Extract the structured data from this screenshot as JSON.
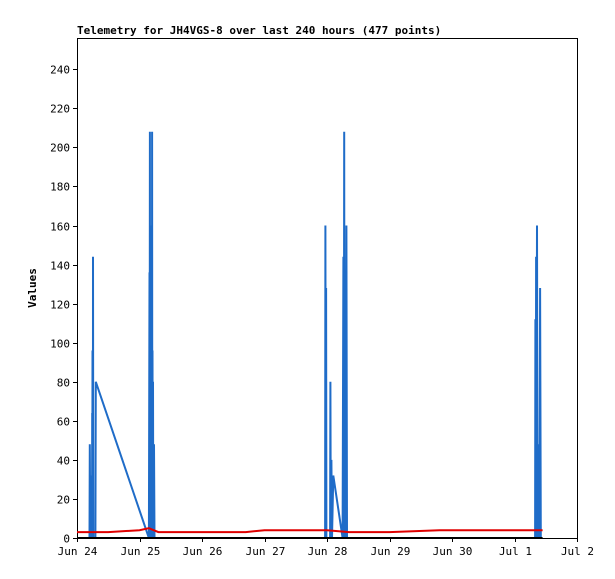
{
  "chart_data": {
    "type": "line",
    "title": "Telemetry for JH4VGS-8 over last 240 hours (477 points)",
    "xlabel": "",
    "ylabel": "Values",
    "ylim": [
      0,
      256
    ],
    "yticks": [
      0,
      20,
      40,
      60,
      80,
      100,
      120,
      140,
      160,
      180,
      200,
      220,
      240
    ],
    "x_tick_labels": [
      "Jun 24",
      "Jun 25",
      "Jun 26",
      "Jun 27",
      "Jun 28",
      "Jun 29",
      "Jun 30",
      "Jul 1",
      "Jul 2"
    ],
    "x_unit": "days since Jun 24 00:00",
    "xlim": [
      0,
      8
    ],
    "grid": false,
    "colors": {
      "series1": "#1f6cc8",
      "series2": "#e00000",
      "series3": "#000000"
    },
    "series": [
      {
        "name": "",
        "color": "#1f6cc8",
        "x": [
          0.2,
          0.205,
          0.212,
          0.216,
          0.226,
          0.231,
          0.236,
          0.24,
          0.243,
          0.245,
          0.248,
          0.254,
          0.256,
          0.26,
          0.265,
          0.27,
          0.275,
          0.28,
          0.285,
          0.287,
          0.291,
          0.295,
          0.3,
          1.15,
          1.16,
          1.163,
          1.166,
          1.169,
          1.172,
          1.175,
          1.177,
          1.18,
          1.183,
          1.186,
          1.189,
          1.192,
          1.195,
          1.198,
          1.201,
          1.204,
          1.208,
          1.212,
          1.216,
          1.22,
          1.226,
          1.232,
          1.24,
          1.246,
          1.252,
          1.26,
          1.266,
          1.272,
          1.28,
          3.97,
          3.975,
          3.98,
          3.985,
          3.99,
          3.995,
          4.05,
          4.055,
          4.06,
          4.07,
          4.08,
          4.1,
          4.25,
          4.262,
          4.268,
          4.275,
          4.28,
          4.288,
          4.295,
          4.3,
          4.31,
          4.32,
          4.33,
          4.34,
          4.345,
          4.35,
          7.33,
          7.335,
          7.34,
          7.345,
          7.35,
          7.36,
          7.37,
          7.38,
          7.385,
          7.39,
          7.4,
          7.41,
          7.42,
          7.43
        ],
        "values": [
          0,
          48,
          0,
          32,
          0,
          0,
          0,
          0,
          64,
          0,
          96,
          0,
          144,
          0,
          0,
          0,
          0,
          0,
          0,
          0,
          0,
          0,
          80,
          0,
          136,
          64,
          208,
          0,
          112,
          0,
          160,
          0,
          144,
          0,
          104,
          0,
          96,
          0,
          208,
          0,
          96,
          0,
          80,
          0,
          0,
          48,
          0,
          0,
          0,
          0,
          0,
          0,
          0,
          0,
          160,
          0,
          128,
          0,
          0,
          0,
          80,
          0,
          40,
          0,
          32,
          0,
          144,
          0,
          208,
          0,
          16,
          0,
          0,
          160,
          0,
          0,
          0,
          0,
          0,
          0,
          112,
          0,
          144,
          0,
          160,
          0,
          48,
          0,
          24,
          0,
          128,
          0,
          0
        ]
      },
      {
        "name": "",
        "color": "#e00000",
        "x": [
          0.0,
          0.5,
          1.0,
          1.15,
          1.3,
          2.0,
          2.7,
          3.0,
          3.5,
          4.0,
          4.35,
          5.0,
          5.8,
          6.5,
          7.0,
          7.2,
          7.45
        ],
        "values": [
          3,
          3,
          4,
          5,
          3,
          3,
          3,
          4,
          4,
          4,
          3,
          3,
          4,
          4,
          4,
          4,
          4
        ]
      },
      {
        "name": "",
        "color": "#000000",
        "x": [
          0.0,
          7.45
        ],
        "values": [
          0,
          0
        ]
      }
    ]
  }
}
